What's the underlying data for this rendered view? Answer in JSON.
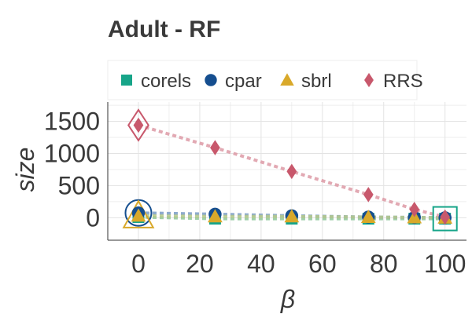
{
  "chart_data": {
    "type": "line",
    "title": "Adult - RF",
    "xlabel": "β",
    "ylabel": "size",
    "x": [
      0,
      25,
      50,
      75,
      90,
      100
    ],
    "xlim": [
      -10,
      107
    ],
    "ylim": [
      -350,
      1800
    ],
    "xticks": [
      0,
      20,
      40,
      60,
      80,
      100
    ],
    "yticks": [
      0,
      500,
      1000,
      1500
    ],
    "grid": true,
    "legend_position": "top",
    "series": [
      {
        "name": "corels",
        "marker": "square",
        "color": "#17a589",
        "line_color": "#8fc79a",
        "values": [
          10,
          -15,
          -15,
          -15,
          -15,
          -15
        ],
        "highlight_index": 5
      },
      {
        "name": "cpar",
        "marker": "circle",
        "color": "#154e8f",
        "line_color": "#7a9cc4",
        "values": [
          75,
          55,
          30,
          10,
          5,
          0
        ],
        "highlight_index": 0
      },
      {
        "name": "sbrl",
        "marker": "triangle",
        "color": "#d9a92a",
        "line_color": "#b5c98a",
        "values": [
          30,
          20,
          20,
          10,
          5,
          0
        ],
        "highlight_index": 0
      },
      {
        "name": "RRS",
        "marker": "diamond",
        "color": "#c8586c",
        "line_color": "#dd9aa6",
        "values": [
          1440,
          1090,
          720,
          360,
          130,
          10
        ],
        "highlight_index": 0
      }
    ]
  }
}
